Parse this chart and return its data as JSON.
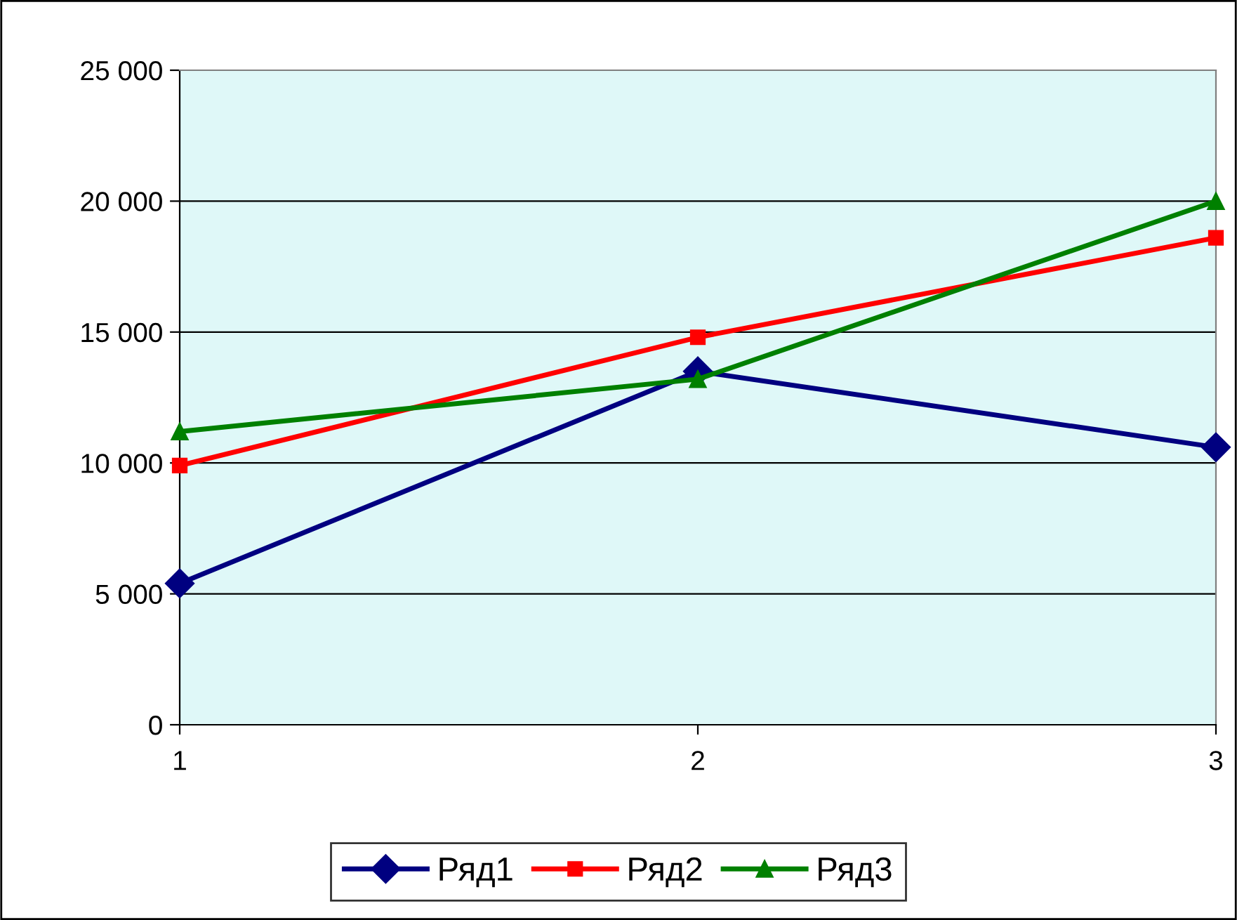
{
  "chart_data": {
    "type": "line",
    "x": [
      1,
      2,
      3
    ],
    "series": [
      {
        "name": "Ряд1",
        "color": "#000080",
        "marker": "diamond",
        "values": [
          5400,
          13500,
          10600
        ]
      },
      {
        "name": "Ряд2",
        "color": "#ff0000",
        "marker": "square",
        "values": [
          9900,
          14800,
          18600
        ]
      },
      {
        "name": "Ряд3",
        "color": "#008000",
        "marker": "triangle",
        "values": [
          11200,
          13200,
          20000
        ]
      }
    ],
    "xlim": [
      1,
      3
    ],
    "xticks": [
      1,
      2,
      3
    ],
    "ylim": [
      0,
      25000
    ],
    "yticks": [
      {
        "value": 0,
        "label": "0"
      },
      {
        "value": 5000,
        "label": "5 000"
      },
      {
        "value": 10000,
        "label": "10 000"
      },
      {
        "value": 15000,
        "label": "15 000"
      },
      {
        "value": 20000,
        "label": "20 000"
      },
      {
        "value": 25000,
        "label": "25 000"
      }
    ],
    "grid": "y",
    "legend": "bottom",
    "line_style": "solid"
  }
}
